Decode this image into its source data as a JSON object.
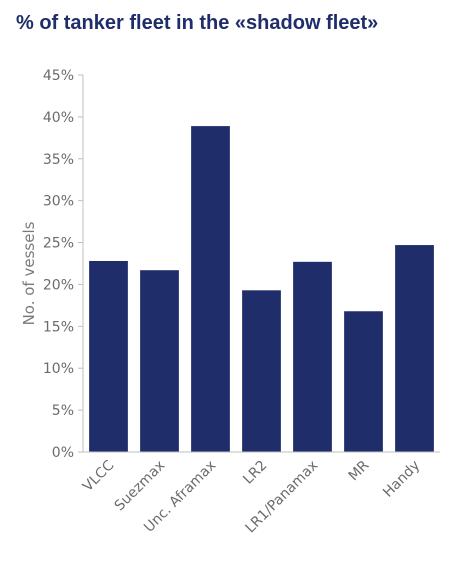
{
  "chart_data": {
    "type": "bar",
    "title": "% of tanker fleet in the «shadow fleet»",
    "xlabel": "",
    "ylabel": "No. of vessels",
    "categories": [
      "VLCC",
      "Suezmax",
      "Unc. Aframax",
      "LR2",
      "LR1/Panamax",
      "MR",
      "Handy"
    ],
    "values": [
      22.8,
      21.7,
      38.9,
      19.3,
      22.7,
      16.8,
      24.7
    ],
    "ylim": [
      0,
      45
    ],
    "yticks": [
      "0%",
      "5%",
      "10%",
      "15%",
      "20%",
      "25%",
      "30%",
      "35%",
      "40%",
      "45%"
    ],
    "grid": false,
    "legend": "none",
    "bar_color": "#1f2d6b",
    "axis_color": "#bfbfbf"
  }
}
